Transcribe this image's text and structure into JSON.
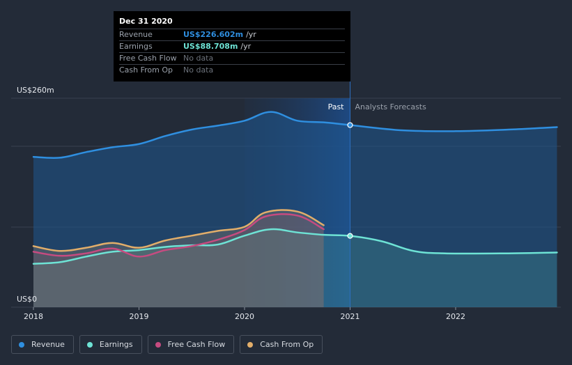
{
  "chart_data": {
    "type": "area",
    "title": "",
    "xlabel": "",
    "ylabel": "",
    "ylim": [
      0,
      260
    ],
    "y_axis_labels": {
      "top": "US$260m",
      "bottom": "US$0"
    },
    "x_ticks": [
      "2018",
      "2019",
      "2020",
      "2021",
      "2022"
    ],
    "past_label": "Past",
    "forecast_label": "Analysts Forecasts",
    "divider_date": 2021.0,
    "grid": true,
    "legend_position": "bottom-left",
    "series": [
      {
        "name": "Revenue",
        "color": "#2f8fe0",
        "points": [
          [
            2018.0,
            187
          ],
          [
            2018.25,
            186
          ],
          [
            2018.5,
            193
          ],
          [
            2018.75,
            199
          ],
          [
            2019.0,
            203
          ],
          [
            2019.25,
            213
          ],
          [
            2019.5,
            221
          ],
          [
            2019.75,
            226
          ],
          [
            2020.0,
            232
          ],
          [
            2020.25,
            243
          ],
          [
            2020.5,
            232
          ],
          [
            2020.75,
            230
          ],
          [
            2021.0,
            226.6
          ],
          [
            2021.5,
            220
          ],
          [
            2022.0,
            219
          ],
          [
            2022.5,
            221
          ],
          [
            2022.96,
            224
          ]
        ]
      },
      {
        "name": "Earnings",
        "color": "#6ee3d5",
        "points": [
          [
            2018.0,
            54
          ],
          [
            2018.25,
            56
          ],
          [
            2018.5,
            63
          ],
          [
            2018.75,
            69
          ],
          [
            2019.0,
            71
          ],
          [
            2019.25,
            75
          ],
          [
            2019.5,
            77
          ],
          [
            2019.75,
            78
          ],
          [
            2020.0,
            89
          ],
          [
            2020.25,
            97
          ],
          [
            2020.5,
            93
          ],
          [
            2020.75,
            90
          ],
          [
            2021.0,
            88.7
          ],
          [
            2021.3,
            82
          ],
          [
            2021.6,
            70
          ],
          [
            2021.9,
            67
          ],
          [
            2022.5,
            67
          ],
          [
            2022.96,
            68
          ]
        ]
      },
      {
        "name": "Free Cash Flow",
        "color": "#c64b80",
        "points": [
          [
            2018.0,
            69
          ],
          [
            2018.25,
            64
          ],
          [
            2018.5,
            67
          ],
          [
            2018.75,
            73
          ],
          [
            2019.0,
            63
          ],
          [
            2019.25,
            71
          ],
          [
            2019.5,
            76
          ],
          [
            2019.75,
            84
          ],
          [
            2020.0,
            96
          ],
          [
            2020.2,
            113
          ],
          [
            2020.5,
            114
          ],
          [
            2020.75,
            97
          ]
        ]
      },
      {
        "name": "Cash From Op",
        "color": "#e2ae6a",
        "points": [
          [
            2018.0,
            76
          ],
          [
            2018.25,
            70
          ],
          [
            2018.5,
            74
          ],
          [
            2018.75,
            80
          ],
          [
            2019.0,
            74
          ],
          [
            2019.25,
            83
          ],
          [
            2019.5,
            89
          ],
          [
            2019.75,
            95
          ],
          [
            2020.0,
            100
          ],
          [
            2020.2,
            118
          ],
          [
            2020.5,
            119
          ],
          [
            2020.75,
            102
          ]
        ]
      }
    ],
    "highlight_points": [
      {
        "series": "Revenue",
        "x": 2021.0,
        "y": 226.6
      },
      {
        "series": "Earnings",
        "x": 2021.0,
        "y": 88.7
      }
    ]
  },
  "tooltip": {
    "date": "Dec 31 2020",
    "rows": [
      {
        "label": "Revenue",
        "value": "US$226.602m",
        "unit": "/yr",
        "color": "#2f8fe0"
      },
      {
        "label": "Earnings",
        "value": "US$88.708m",
        "unit": "/yr",
        "color": "#6ee3d5"
      },
      {
        "label": "Free Cash Flow",
        "value": "No data",
        "unit": "",
        "color": ""
      },
      {
        "label": "Cash From Op",
        "value": "No data",
        "unit": "",
        "color": ""
      }
    ]
  },
  "legend": [
    {
      "label": "Revenue",
      "color": "#2f8fe0"
    },
    {
      "label": "Earnings",
      "color": "#6ee3d5"
    },
    {
      "label": "Free Cash Flow",
      "color": "#c64b80"
    },
    {
      "label": "Cash From Op",
      "color": "#e2ae6a"
    }
  ]
}
